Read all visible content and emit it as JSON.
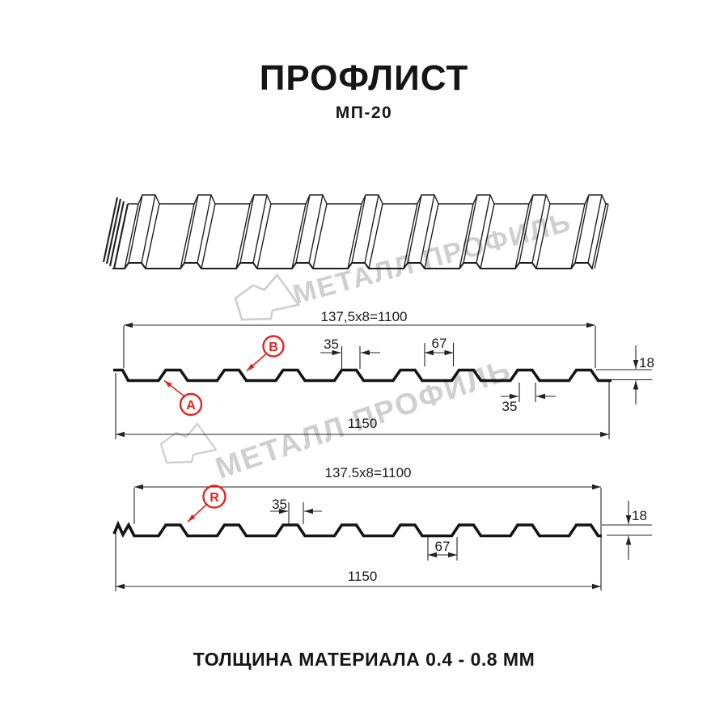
{
  "header": {
    "title": "ПРОФЛИСТ",
    "subtitle": "МП-20"
  },
  "watermark": {
    "brand": "МЕТАЛЛ ПРОФИЛЬ",
    "color": "#cfcfcf"
  },
  "profile_top": {
    "overall_pitch": "137,5x8=1100",
    "rib_top_width": "35",
    "groove_width": "67",
    "height": "18",
    "rib_bottom_width": "35",
    "full_width": "1150",
    "label_a": "A",
    "label_b": "B"
  },
  "profile_bottom": {
    "overall_pitch": "137.5x8=1100",
    "rib_top_width": "35",
    "groove_width": "67",
    "height": "18",
    "full_width": "1150",
    "label_r": "R"
  },
  "footer": {
    "note": "ТОЛЩИНА МАТЕРИАЛА 0.4 - 0.8 ММ"
  },
  "colors": {
    "accent_red": "#e2251f",
    "line": "#1a1a1a",
    "watermark_gray": "#cfcfcf"
  }
}
